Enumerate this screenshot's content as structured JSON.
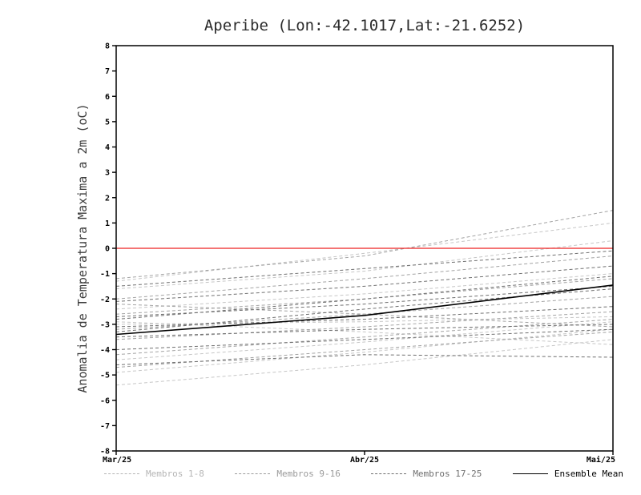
{
  "title": "Aperibe (Lon:-42.1017,Lat:-21.6252)",
  "chart_data": {
    "type": "line",
    "title": "Aperibe (Lon:-42.1017,Lat:-21.6252)",
    "x": [
      "Mar/25",
      "Abr/25",
      "Mai/25"
    ],
    "xlabel": "",
    "ylabel": "Anomalia de Temperatura Maxima a 2m (oC)",
    "ylim": [
      -8,
      8
    ],
    "ytick_step": 1,
    "grid": false,
    "legend_position": "bottom",
    "zero_line": {
      "value": 0,
      "color": "#ee2222"
    },
    "groups": [
      {
        "name": "Membros 1-8",
        "color": "#c6c6c6",
        "style": "dashed",
        "series": [
          [
            -1.6,
            -0.9,
            0.3
          ],
          [
            -2.4,
            -1.8,
            -1.0
          ],
          [
            -3.0,
            -2.9,
            -2.7
          ],
          [
            -4.4,
            -3.7,
            -2.9
          ],
          [
            -4.9,
            -4.1,
            -3.2
          ],
          [
            -5.4,
            -4.6,
            -3.6
          ],
          [
            -2.9,
            -3.3,
            -3.8
          ],
          [
            -1.3,
            -0.2,
            1.0
          ]
        ]
      },
      {
        "name": "Membros 9-16",
        "color": "#a3a3a3",
        "style": "dashed",
        "series": [
          [
            -1.2,
            -0.3,
            1.5
          ],
          [
            -2.0,
            -1.2,
            -0.3
          ],
          [
            -2.6,
            -2.0,
            -1.2
          ],
          [
            -3.2,
            -2.6,
            -1.9
          ],
          [
            -3.6,
            -3.1,
            -2.5
          ],
          [
            -4.2,
            -3.5,
            -2.8
          ],
          [
            -4.7,
            -4.0,
            -3.3
          ],
          [
            -2.2,
            -2.6,
            -3.1
          ]
        ]
      },
      {
        "name": "Membros 17-25",
        "color": "#6f6f6f",
        "style": "dashed",
        "series": [
          [
            -1.5,
            -0.8,
            -0.1
          ],
          [
            -2.1,
            -1.5,
            -0.7
          ],
          [
            -2.7,
            -2.2,
            -1.5
          ],
          [
            -3.1,
            -2.8,
            -2.3
          ],
          [
            -3.5,
            -3.2,
            -3.0
          ],
          [
            -4.0,
            -3.6,
            -3.2
          ],
          [
            -4.6,
            -4.2,
            -4.3
          ],
          [
            -2.8,
            -2.0,
            -1.1
          ],
          [
            -3.3,
            -2.4,
            -1.6
          ]
        ]
      },
      {
        "name": "Ensemble Mean",
        "color": "#000000",
        "style": "solid",
        "series": [
          [
            -3.4,
            -2.65,
            -1.45
          ]
        ]
      }
    ],
    "legend": [
      {
        "label": "Membros 1-8",
        "color": "#b5b5b5",
        "style": "dashed"
      },
      {
        "label": "Membros 9-16",
        "color": "#9a9a9a",
        "style": "dashed"
      },
      {
        "label": "Membros 17-25",
        "color": "#6f6f6f",
        "style": "dashed"
      },
      {
        "label": "Ensemble Mean",
        "color": "#000000",
        "style": "solid"
      }
    ]
  }
}
